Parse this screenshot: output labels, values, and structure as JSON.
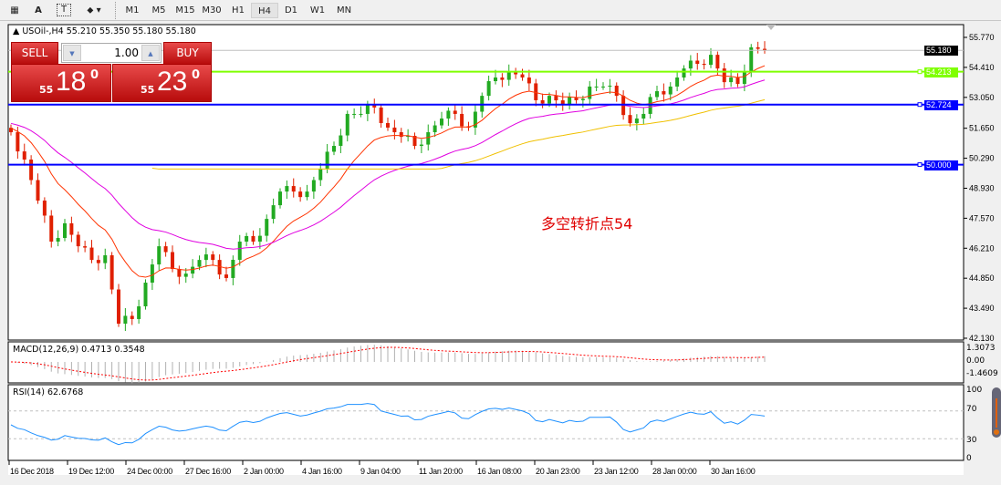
{
  "toolbar": {
    "tools": [
      {
        "icon": "grid-icon"
      },
      {
        "label": "A",
        "icon": "text-icon"
      },
      {
        "icon": "text-label-icon"
      },
      {
        "icon": "shapes-icon"
      }
    ],
    "timeframes": [
      "M1",
      "M5",
      "M15",
      "M30",
      "H1",
      "H4",
      "D1",
      "W1",
      "MN"
    ],
    "active_timeframe": "H4"
  },
  "chart": {
    "title": "USOil-,H4  55.210 55.350 55.180 55.180",
    "annotation": "多空转折点54",
    "lines": [
      {
        "label": "55.180",
        "value": 55.18,
        "color": "#000000",
        "kind": "bid"
      },
      {
        "label": "54.213",
        "value": 54.213,
        "color": "#7fff00",
        "kind": "hline"
      },
      {
        "label": "52.724",
        "value": 52.724,
        "color": "#0000ff",
        "kind": "hline"
      },
      {
        "label": "50.000",
        "value": 50.0,
        "color": "#0000ff",
        "kind": "hline"
      }
    ],
    "price_ticks": [
      "55.770",
      "54.410",
      "53.050",
      "51.650",
      "50.290",
      "48.930",
      "47.570",
      "46.210",
      "44.850",
      "43.490",
      "42.130"
    ],
    "time_ticks": [
      "16 Dec 2018",
      "19 Dec 12:00",
      "24 Dec 00:00",
      "27 Dec 16:00",
      "2 Jan 00:00",
      "4 Jan 16:00",
      "9 Jan 04:00",
      "11 Jan 20:00",
      "16 Jan 08:00",
      "20 Jan 23:00",
      "23 Jan 12:00",
      "28 Jan 00:00",
      "30 Jan 16:00"
    ],
    "colors": {
      "bull": "#22aa22",
      "bear": "#e02000",
      "ma_fast": "#ff3300",
      "ma_slow": "#e000e0",
      "ma_long": "#f0c000"
    }
  },
  "trade": {
    "sell_label": "SELL",
    "buy_label": "BUY",
    "volume": "1.00",
    "sell_prefix": "55",
    "sell_main": "18",
    "sell_sup": "0",
    "buy_prefix": "55",
    "buy_main": "23",
    "buy_sup": "0"
  },
  "macd": {
    "label": "MACD(12,26,9) 0.4713 0.3548",
    "ticks": [
      "1.3073",
      "0.00",
      "-1.4609"
    ]
  },
  "rsi": {
    "label": "RSI(14) 62.6768",
    "ticks": [
      "100",
      "70",
      "30",
      "0"
    ],
    "value": 62.6768
  },
  "chart_data": {
    "type": "candlestick",
    "ylim": [
      42.13,
      55.77
    ],
    "closes": [
      51.47,
      50.23,
      48.37,
      46.51,
      47.34,
      46.3,
      45.68,
      45.89,
      42.79,
      43.0,
      44.65,
      46.3,
      45.27,
      45.06,
      45.68,
      45.68,
      44.86,
      46.51,
      46.51,
      47.54,
      48.78,
      48.78,
      48.78,
      49.82,
      50.85,
      52.3,
      52.3,
      52.59,
      51.68,
      51.26,
      50.85,
      51.47,
      52.09,
      52.3,
      51.68,
      53.12,
      53.95,
      54.24,
      53.95,
      52.92,
      53.12,
      52.71,
      52.92,
      53.54,
      53.54,
      53.12,
      51.88,
      52.3,
      53.33,
      53.54,
      54.36,
      54.57,
      54.98,
      53.74,
      53.66,
      55.32,
      55.18
    ]
  }
}
